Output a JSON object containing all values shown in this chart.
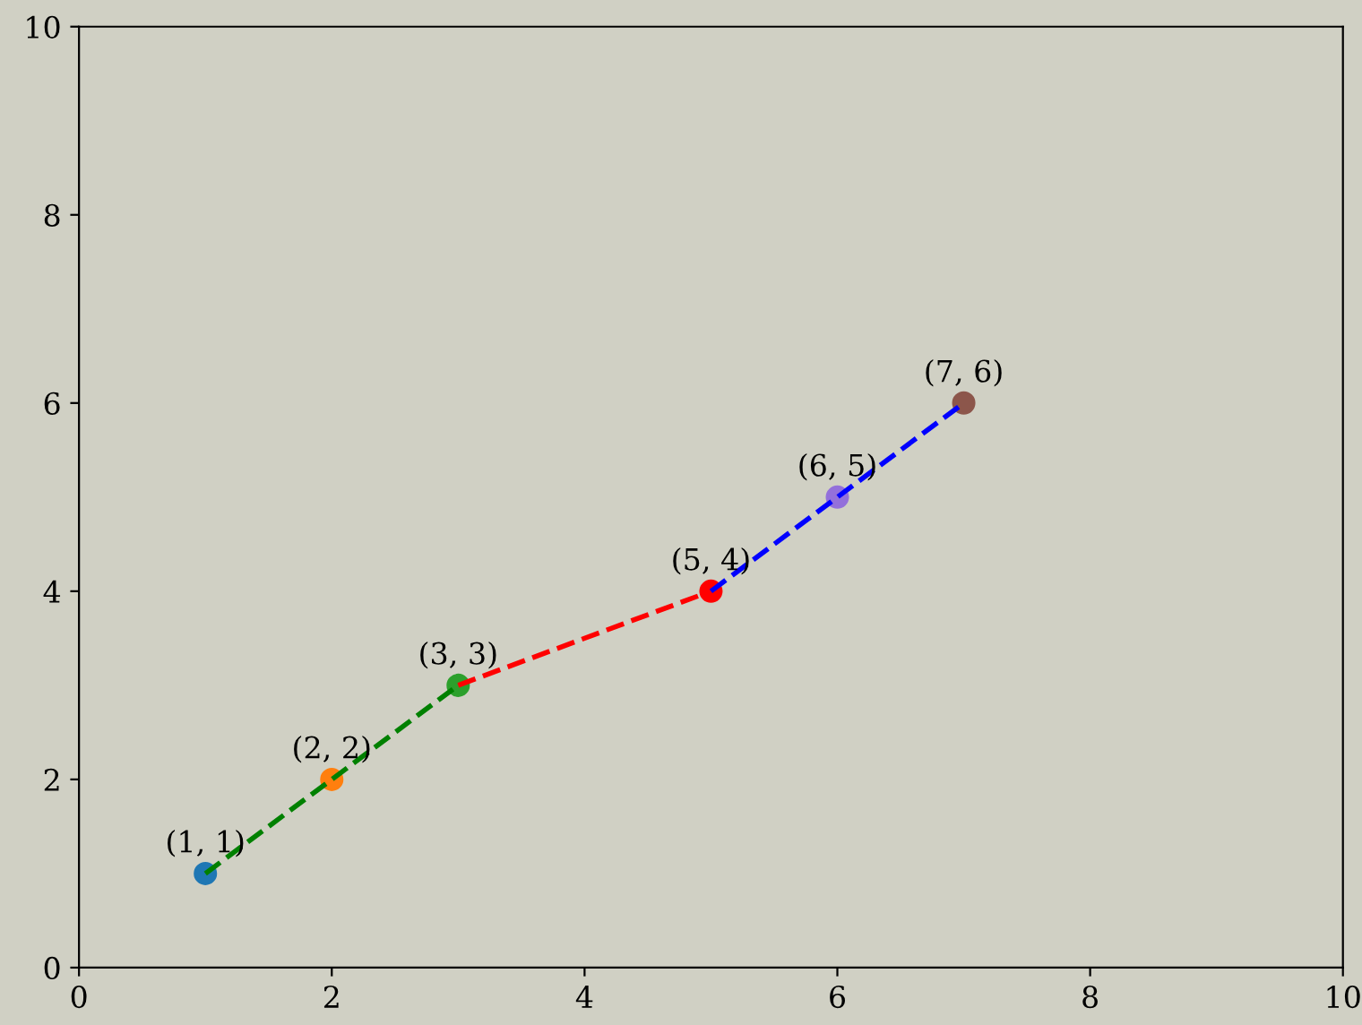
{
  "chart_data": {
    "type": "scatter",
    "xlim": [
      0,
      10
    ],
    "ylim": [
      0,
      10
    ],
    "xticks": [
      0,
      2,
      4,
      6,
      8,
      10
    ],
    "yticks": [
      0,
      2,
      4,
      6,
      8,
      10
    ],
    "grid": false,
    "series": [
      {
        "type": "line",
        "x": [
          1,
          2,
          3
        ],
        "values": [
          1,
          2,
          3
        ],
        "color": "#008000",
        "line_style": "dashed",
        "marker": "none"
      },
      {
        "type": "line",
        "x": [
          3,
          5
        ],
        "values": [
          3,
          4
        ],
        "color": "#ff0000",
        "line_style": "dashed",
        "marker": "none"
      },
      {
        "type": "line",
        "x": [
          5,
          6,
          7
        ],
        "values": [
          4,
          5,
          6
        ],
        "color": "#0000ff",
        "line_style": "dashed",
        "marker": "none"
      },
      {
        "x": [
          1,
          2,
          3,
          5,
          6,
          7
        ],
        "values": [
          1,
          2,
          3,
          4,
          5,
          6
        ],
        "colors": [
          "#1f77b4",
          "#ff7f0e",
          "#2ca02c",
          "#ff0000",
          "#9370db",
          "#8c564b"
        ],
        "marker": "circle",
        "value_labels": [
          "(1, 1)",
          "(2, 2)",
          "(3, 3)",
          "(5, 4)",
          "(6, 5)",
          "(7, 6)"
        ]
      }
    ]
  }
}
